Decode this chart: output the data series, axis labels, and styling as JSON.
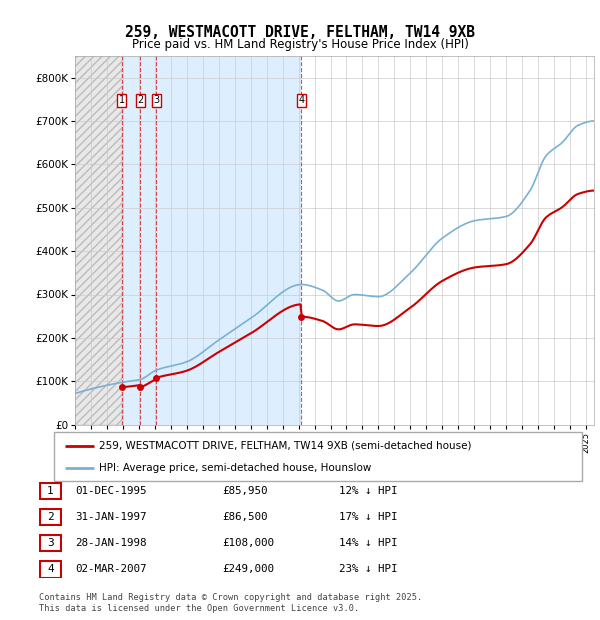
{
  "title": "259, WESTMACOTT DRIVE, FELTHAM, TW14 9XB",
  "subtitle": "Price paid vs. HM Land Registry's House Price Index (HPI)",
  "ylim": [
    0,
    850000
  ],
  "yticks": [
    0,
    100000,
    200000,
    300000,
    400000,
    500000,
    600000,
    700000,
    800000
  ],
  "ytick_labels": [
    "£0",
    "£100K",
    "£200K",
    "£300K",
    "£400K",
    "£500K",
    "£600K",
    "£700K",
    "£800K"
  ],
  "xlim_start": 1993.0,
  "xlim_end": 2025.5,
  "purchases": [
    {
      "label": "1",
      "date_num": 1995.92,
      "price": 85950
    },
    {
      "label": "2",
      "date_num": 1997.08,
      "price": 86500
    },
    {
      "label": "3",
      "date_num": 1998.08,
      "price": 108000
    },
    {
      "label": "4",
      "date_num": 2007.17,
      "price": 249000
    }
  ],
  "legend_entries": [
    {
      "label": "259, WESTMACOTT DRIVE, FELTHAM, TW14 9XB (semi-detached house)",
      "color": "#cc0000"
    },
    {
      "label": "HPI: Average price, semi-detached house, Hounslow",
      "color": "#7ab0d4"
    }
  ],
  "table_rows": [
    {
      "num": "1",
      "date": "01-DEC-1995",
      "price": "£85,950",
      "hpi": "12% ↓ HPI"
    },
    {
      "num": "2",
      "date": "31-JAN-1997",
      "price": "£86,500",
      "hpi": "17% ↓ HPI"
    },
    {
      "num": "3",
      "date": "28-JAN-1998",
      "price": "£108,000",
      "hpi": "14% ↓ HPI"
    },
    {
      "num": "4",
      "date": "02-MAR-2007",
      "price": "£249,000",
      "hpi": "23% ↓ HPI"
    }
  ],
  "footer": "Contains HM Land Registry data © Crown copyright and database right 2025.\nThis data is licensed under the Open Government Licence v3.0.",
  "purchase_line_color": "#cc0000",
  "hpi_line_color": "#7ab0d4",
  "hatch_bg_color": "#e8e8e8",
  "light_blue_bg": "#ddeeff"
}
